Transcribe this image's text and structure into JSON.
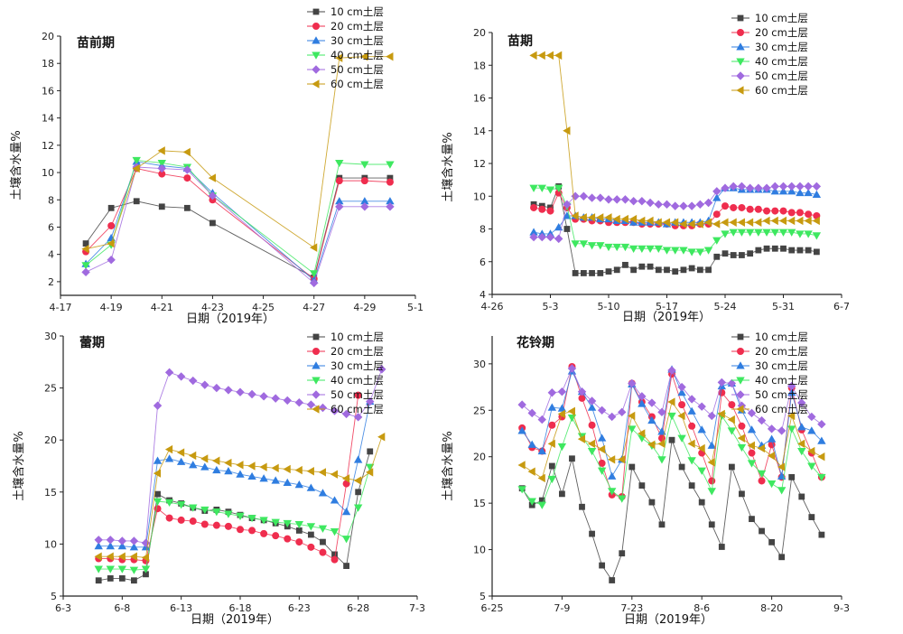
{
  "series_names": [
    "10 cm土层",
    "20 cm土层",
    "30 cm土层",
    "40 cm土层",
    "50 cm土层",
    "60 cm土层"
  ],
  "series_colors": [
    "#444444",
    "#ef2d4e",
    "#2f7de0",
    "#3ee860",
    "#a06adf",
    "#c79a10"
  ],
  "series_markers": [
    "square",
    "circle",
    "triangle-up",
    "triangle-down",
    "diamond",
    "triangle-left"
  ],
  "chart_data": [
    {
      "type": "line",
      "title": "苗前期",
      "xlabel": "日期（2019年）",
      "ylabel": "土壤含水量%",
      "xlim": [
        0,
        14
      ],
      "ylim": [
        1,
        20
      ],
      "xticks": [
        [
          0,
          "4-17"
        ],
        [
          2,
          "4-19"
        ],
        [
          4,
          "4-21"
        ],
        [
          6,
          "4-23"
        ],
        [
          8,
          "4-25"
        ],
        [
          10,
          "4-27"
        ],
        [
          12,
          "4-29"
        ],
        [
          14,
          "5-1"
        ]
      ],
      "yticks": [
        [
          2,
          "2"
        ],
        [
          4,
          "4"
        ],
        [
          6,
          "6"
        ],
        [
          8,
          "8"
        ],
        [
          10,
          "10"
        ],
        [
          12,
          "12"
        ],
        [
          14,
          "14"
        ],
        [
          16,
          "16"
        ],
        [
          18,
          "18"
        ],
        [
          20,
          "20"
        ]
      ],
      "x": [
        1,
        2,
        3,
        4,
        5,
        6,
        10,
        11,
        12,
        13
      ],
      "series": [
        {
          "name": "10 cm土层",
          "values": [
            4.8,
            7.4,
            7.9,
            7.5,
            7.4,
            6.3,
            2.3,
            9.6,
            9.6,
            9.6
          ]
        },
        {
          "name": "20 cm土层",
          "values": [
            4.2,
            6.1,
            10.3,
            9.9,
            9.6,
            8.0,
            2.2,
            9.4,
            9.4,
            9.3
          ]
        },
        {
          "name": "30 cm土层",
          "values": [
            3.3,
            5.2,
            10.8,
            10.5,
            10.3,
            8.5,
            2.1,
            7.9,
            7.9,
            7.9
          ]
        },
        {
          "name": "40 cm土层",
          "values": [
            3.2,
            4.7,
            10.9,
            10.7,
            10.4,
            8.3,
            2.6,
            10.7,
            10.6,
            10.6
          ]
        },
        {
          "name": "50 cm土层",
          "values": [
            2.7,
            3.6,
            10.4,
            10.3,
            10.2,
            8.3,
            1.9,
            7.5,
            7.5,
            7.5
          ]
        },
        {
          "name": "60 cm土层",
          "values": [
            4.4,
            4.8,
            10.3,
            11.6,
            11.5,
            9.6,
            4.5,
            18.4,
            18.5,
            18.5
          ]
        }
      ],
      "legend": "top-right, outside"
    },
    {
      "type": "line",
      "title": "苗期",
      "xlabel": "日期（2019年）",
      "ylabel": "土壤含水量%",
      "xlim": [
        0,
        42
      ],
      "ylim": [
        4,
        20
      ],
      "xticks": [
        [
          0,
          "4-26"
        ],
        [
          7,
          "5-3"
        ],
        [
          14,
          "5-10"
        ],
        [
          21,
          "5-17"
        ],
        [
          28,
          "5-24"
        ],
        [
          35,
          "5-31"
        ],
        [
          42,
          "6-7"
        ]
      ],
      "yticks": [
        [
          4,
          "4"
        ],
        [
          6,
          "6"
        ],
        [
          8,
          "8"
        ],
        [
          10,
          "10"
        ],
        [
          12,
          "12"
        ],
        [
          14,
          "14"
        ],
        [
          16,
          "16"
        ],
        [
          18,
          "18"
        ],
        [
          20,
          "20"
        ]
      ],
      "x": [
        5,
        6,
        7,
        8,
        9,
        10,
        11,
        12,
        13,
        14,
        15,
        16,
        17,
        18,
        19,
        20,
        21,
        22,
        23,
        24,
        25,
        26,
        27,
        28,
        29,
        30,
        31,
        32,
        33,
        34,
        35,
        36,
        37,
        38,
        39
      ],
      "series": [
        {
          "name": "10 cm土层",
          "values": [
            9.5,
            9.4,
            9.3,
            10.6,
            8.0,
            5.3,
            5.3,
            5.3,
            5.3,
            5.4,
            5.5,
            5.8,
            5.5,
            5.7,
            5.7,
            5.5,
            5.5,
            5.4,
            5.5,
            5.6,
            5.5,
            5.5,
            6.3,
            6.5,
            6.4,
            6.4,
            6.5,
            6.7,
            6.8,
            6.8,
            6.8,
            6.7,
            6.7,
            6.7,
            6.6
          ]
        },
        {
          "name": "20 cm土层",
          "values": [
            9.3,
            9.2,
            9.1,
            10.2,
            9.3,
            8.6,
            8.6,
            8.5,
            8.5,
            8.4,
            8.4,
            8.4,
            8.4,
            8.3,
            8.3,
            8.3,
            8.3,
            8.2,
            8.2,
            8.2,
            8.3,
            8.3,
            8.9,
            9.4,
            9.3,
            9.3,
            9.2,
            9.2,
            9.1,
            9.1,
            9.1,
            9.0,
            9.0,
            8.9,
            8.8
          ]
        },
        {
          "name": "30 cm土层",
          "values": [
            7.8,
            7.7,
            7.7,
            8.1,
            8.8,
            8.8,
            8.7,
            8.7,
            8.6,
            8.6,
            8.5,
            8.5,
            8.4,
            8.4,
            8.4,
            8.4,
            8.3,
            8.4,
            8.4,
            8.4,
            8.4,
            8.5,
            9.9,
            10.5,
            10.5,
            10.4,
            10.4,
            10.4,
            10.4,
            10.3,
            10.3,
            10.3,
            10.2,
            10.2,
            10.1
          ]
        },
        {
          "name": "40 cm土层",
          "values": [
            10.5,
            10.5,
            10.4,
            10.5,
            9.4,
            7.1,
            7.1,
            7.0,
            7.0,
            6.9,
            6.9,
            6.9,
            6.8,
            6.8,
            6.8,
            6.8,
            6.7,
            6.7,
            6.7,
            6.6,
            6.6,
            6.7,
            7.3,
            7.7,
            7.8,
            7.8,
            7.8,
            7.8,
            7.8,
            7.8,
            7.8,
            7.8,
            7.7,
            7.7,
            7.6
          ]
        },
        {
          "name": "50 cm土层",
          "values": [
            7.5,
            7.5,
            7.5,
            7.4,
            9.5,
            10.0,
            10.0,
            9.9,
            9.9,
            9.8,
            9.8,
            9.8,
            9.7,
            9.7,
            9.6,
            9.5,
            9.5,
            9.4,
            9.4,
            9.4,
            9.5,
            9.6,
            10.3,
            10.5,
            10.6,
            10.6,
            10.5,
            10.5,
            10.5,
            10.6,
            10.6,
            10.6,
            10.6,
            10.6,
            10.6
          ]
        },
        {
          "name": "60 cm土层",
          "values": [
            18.6,
            18.6,
            18.6,
            18.6,
            14.0,
            8.8,
            8.7,
            8.7,
            8.7,
            8.7,
            8.6,
            8.6,
            8.6,
            8.5,
            8.5,
            8.4,
            8.4,
            8.4,
            8.3,
            8.3,
            8.3,
            8.4,
            8.3,
            8.4,
            8.4,
            8.4,
            8.4,
            8.4,
            8.5,
            8.5,
            8.5,
            8.5,
            8.5,
            8.5,
            8.5
          ]
        }
      ],
      "legend": "top-right, outside"
    },
    {
      "type": "line",
      "title": "蕾期",
      "xlabel": "日期（2019年）",
      "ylabel": "土壤含水量%",
      "xlim": [
        0,
        30
      ],
      "ylim": [
        5,
        30
      ],
      "xticks": [
        [
          0,
          "6-3"
        ],
        [
          5,
          "6-8"
        ],
        [
          10,
          "6-13"
        ],
        [
          15,
          "6-18"
        ],
        [
          20,
          "6-23"
        ],
        [
          25,
          "6-28"
        ],
        [
          30,
          "7-3"
        ]
      ],
      "yticks": [
        [
          5,
          "5"
        ],
        [
          10,
          "10"
        ],
        [
          15,
          "15"
        ],
        [
          20,
          "20"
        ],
        [
          25,
          "25"
        ],
        [
          30,
          "30"
        ]
      ],
      "x": [
        3,
        4,
        5,
        6,
        7,
        8,
        9,
        10,
        11,
        12,
        13,
        14,
        15,
        16,
        17,
        18,
        19,
        20,
        21,
        22,
        23,
        24,
        25,
        26,
        27
      ],
      "series": [
        {
          "name": "10 cm土层",
          "values": [
            6.5,
            6.7,
            6.7,
            6.5,
            7.1,
            14.8,
            14.2,
            13.9,
            13.5,
            13.2,
            13.3,
            13.1,
            12.8,
            12.5,
            12.3,
            12.0,
            11.7,
            11.3,
            10.9,
            10.2,
            9.0,
            7.9,
            15.0,
            18.9,
            null
          ]
        },
        {
          "name": "20 cm土层",
          "values": [
            8.6,
            8.6,
            8.5,
            8.5,
            8.4,
            13.4,
            12.5,
            12.3,
            12.2,
            11.9,
            11.8,
            11.7,
            11.4,
            11.3,
            11.0,
            10.8,
            10.5,
            10.2,
            9.7,
            9.2,
            8.5,
            15.8,
            24.3,
            null,
            null
          ]
        },
        {
          "name": "30 cm土层",
          "values": [
            9.8,
            9.8,
            9.8,
            9.7,
            9.7,
            18.0,
            18.2,
            17.9,
            17.6,
            17.4,
            17.1,
            17.0,
            16.7,
            16.5,
            16.3,
            16.1,
            15.9,
            15.7,
            15.4,
            14.9,
            14.2,
            13.1,
            18.1,
            23.7,
            null
          ]
        },
        {
          "name": "40 cm土层",
          "values": [
            7.6,
            7.6,
            7.6,
            7.5,
            7.6,
            14.1,
            14.0,
            13.8,
            13.5,
            13.3,
            13.1,
            12.9,
            12.7,
            12.5,
            12.3,
            12.1,
            12.0,
            11.9,
            11.7,
            11.5,
            11.2,
            10.5,
            13.5,
            17.4,
            null
          ]
        },
        {
          "name": "50 cm土层",
          "values": [
            10.4,
            10.4,
            10.3,
            10.3,
            10.1,
            23.3,
            26.5,
            26.1,
            25.7,
            25.3,
            25.0,
            24.8,
            24.6,
            24.4,
            24.2,
            24.0,
            23.8,
            23.6,
            23.4,
            23.1,
            22.8,
            22.5,
            22.2,
            23.7,
            26.8
          ]
        },
        {
          "name": "60 cm土层",
          "values": [
            8.8,
            8.8,
            8.8,
            8.8,
            8.7,
            16.8,
            19.1,
            18.8,
            18.5,
            18.2,
            18.0,
            17.8,
            17.6,
            17.5,
            17.4,
            17.3,
            17.2,
            17.1,
            17.0,
            16.9,
            16.7,
            16.3,
            16.1,
            16.9,
            20.3
          ]
        }
      ],
      "legend": "top-right, outside"
    },
    {
      "type": "line",
      "title": "花铃期",
      "xlabel": "日期（2019年）",
      "ylabel": "土壤含水量%",
      "xlim": [
        0,
        70
      ],
      "ylim": [
        5,
        33
      ],
      "xticks": [
        [
          0,
          "6-25"
        ],
        [
          14,
          "7-9"
        ],
        [
          28,
          "7-23"
        ],
        [
          42,
          "8-6"
        ],
        [
          56,
          "8-20"
        ],
        [
          70,
          "9-3"
        ]
      ],
      "yticks": [
        [
          5,
          "5"
        ],
        [
          10,
          "10"
        ],
        [
          15,
          "15"
        ],
        [
          20,
          "20"
        ],
        [
          25,
          "25"
        ],
        [
          30,
          "30"
        ]
      ],
      "x": [
        6,
        8,
        10,
        12,
        14,
        16,
        18,
        20,
        22,
        24,
        26,
        28,
        30,
        32,
        34,
        36,
        38,
        40,
        42,
        44,
        46,
        48,
        50,
        52,
        54,
        56,
        58,
        60,
        62,
        64,
        66
      ],
      "series": [
        {
          "name": "10 cm土层",
          "values": [
            16.6,
            14.8,
            15.3,
            19.0,
            16.0,
            19.8,
            14.6,
            11.7,
            8.3,
            6.7,
            9.6,
            18.9,
            16.9,
            15.1,
            12.7,
            21.8,
            18.9,
            16.9,
            15.1,
            12.7,
            10.3,
            18.9,
            16.0,
            13.3,
            12.0,
            10.8,
            9.2,
            17.8,
            15.7,
            13.5,
            11.6
          ]
        },
        {
          "name": "20 cm土层",
          "values": [
            23.1,
            21.0,
            20.6,
            23.4,
            24.3,
            29.7,
            26.3,
            23.4,
            19.3,
            15.9,
            15.7,
            27.9,
            25.9,
            24.3,
            22.0,
            28.9,
            25.6,
            23.3,
            20.4,
            17.4,
            26.9,
            25.6,
            23.3,
            20.4,
            17.4,
            21.3,
            17.8,
            27.4,
            22.9,
            20.4,
            17.8
          ]
        },
        {
          "name": "30 cm土层",
          "values": [
            22.8,
            21.3,
            20.6,
            25.3,
            25.2,
            29.2,
            27.0,
            25.3,
            22.0,
            17.9,
            19.7,
            27.8,
            25.7,
            23.9,
            22.7,
            29.4,
            26.9,
            24.9,
            22.9,
            21.2,
            27.6,
            27.9,
            25.0,
            22.9,
            21.2,
            21.9,
            17.9,
            26.9,
            23.2,
            22.8,
            21.7
          ]
        },
        {
          "name": "40 cm土层",
          "values": [
            16.5,
            15.2,
            14.8,
            17.6,
            21.1,
            24.2,
            22.2,
            20.6,
            18.5,
            16.3,
            15.5,
            23.0,
            22.0,
            21.2,
            19.7,
            24.4,
            22.0,
            19.6,
            18.5,
            16.3,
            24.4,
            22.8,
            21.0,
            19.3,
            18.2,
            17.1,
            16.4,
            23.0,
            20.6,
            19.0,
            17.8
          ]
        },
        {
          "name": "50 cm土层",
          "values": [
            25.6,
            24.7,
            24.0,
            26.9,
            27.0,
            29.5,
            27.0,
            26.0,
            25.0,
            24.3,
            24.8,
            27.9,
            26.5,
            25.8,
            24.8,
            29.3,
            27.5,
            26.2,
            25.4,
            24.4,
            28.0,
            27.9,
            25.5,
            24.7,
            23.9,
            23.0,
            22.8,
            27.6,
            25.8,
            24.3,
            23.5
          ]
        },
        {
          "name": "60 cm土层",
          "values": [
            19.1,
            18.4,
            17.7,
            21.4,
            24.6,
            24.9,
            21.9,
            21.4,
            20.8,
            19.7,
            19.7,
            24.4,
            22.5,
            21.3,
            21.4,
            25.9,
            24.4,
            21.4,
            20.9,
            19.4,
            24.6,
            24.0,
            22.0,
            21.2,
            20.9,
            20.1,
            18.9,
            24.4,
            21.4,
            20.6,
            20.0
          ]
        }
      ],
      "legend": "top-right, inside"
    }
  ]
}
